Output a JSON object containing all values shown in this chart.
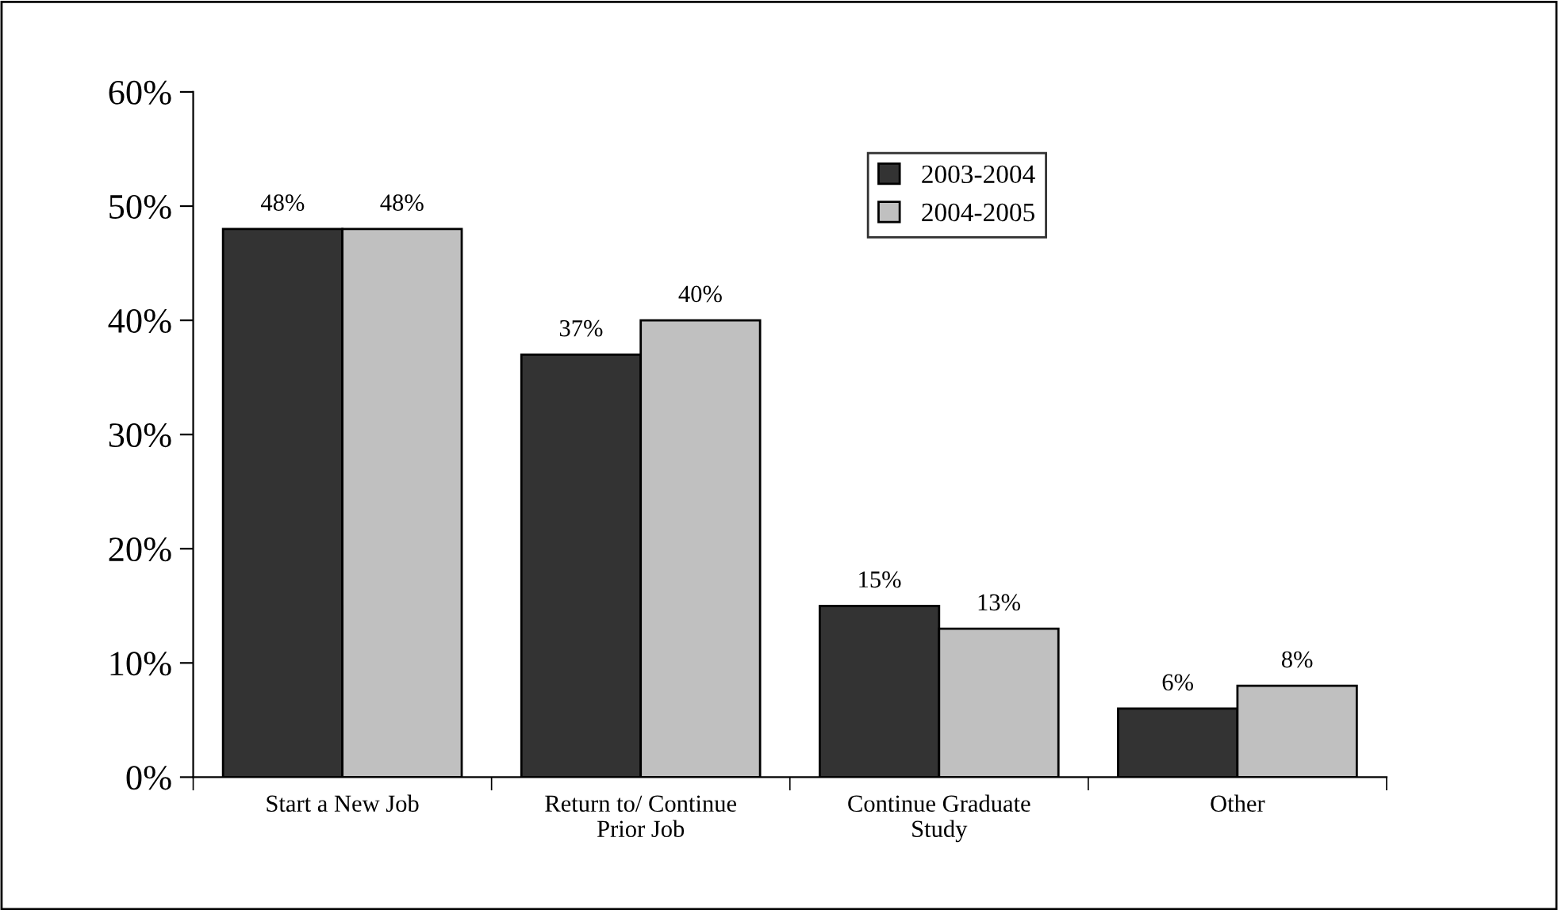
{
  "chart_data": {
    "type": "bar",
    "categories": [
      "Start a New Job",
      "Return to/ Continue\nPrior Job",
      "Continue Graduate\nStudy",
      "Other"
    ],
    "series": [
      {
        "name": "2003-2004",
        "color": "#333333",
        "values": [
          48,
          37,
          15,
          6
        ],
        "value_labels": [
          "48%",
          "37%",
          "15%",
          "6%"
        ]
      },
      {
        "name": "2004-2005",
        "color": "#c0c0c0",
        "values": [
          48,
          40,
          13,
          8
        ],
        "value_labels": [
          "48%",
          "40%",
          "13%",
          "8%"
        ]
      }
    ],
    "ylim": [
      0,
      60
    ],
    "yticks": [
      {
        "value": 0,
        "label": "0%"
      },
      {
        "value": 10,
        "label": "10%"
      },
      {
        "value": 20,
        "label": "20%"
      },
      {
        "value": 30,
        "label": "30%"
      },
      {
        "value": 40,
        "label": "40%"
      },
      {
        "value": 50,
        "label": "50%"
      },
      {
        "value": 60,
        "label": "60%"
      }
    ],
    "grid": false,
    "legend": "top"
  }
}
